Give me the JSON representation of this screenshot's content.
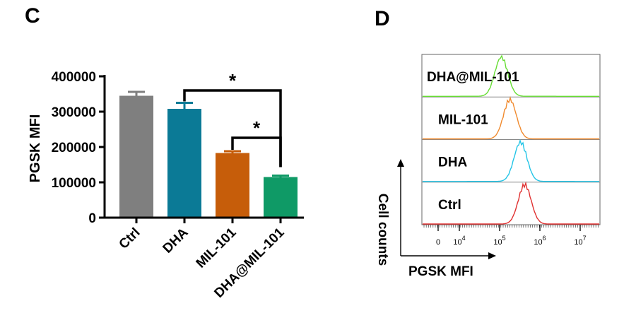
{
  "panels": {
    "c_label": "C",
    "d_label": "D"
  },
  "chart_data": [
    {
      "type": "bar",
      "panel": "C",
      "categories": [
        "Ctrl",
        "DHA",
        "MIL-101",
        "DHA@MIL-101"
      ],
      "values": [
        345000,
        308000,
        183000,
        115000
      ],
      "errors": [
        11000,
        17000,
        5000,
        4000
      ],
      "colors": [
        "#7f7f7f",
        "#0b7a96",
        "#c65d0a",
        "#0f9a66"
      ],
      "ylabel": "PGSK MFI",
      "ylim": [
        0,
        400000
      ],
      "yticks": [
        0,
        100000,
        200000,
        300000,
        400000
      ],
      "yticklabels": [
        "0",
        "100000",
        "200000",
        "300000",
        "400000"
      ],
      "significance": [
        {
          "from": "DHA",
          "to": "DHA@MIL-101",
          "label": "*"
        },
        {
          "from": "MIL-101",
          "to": "DHA@MIL-101",
          "label": "*"
        }
      ],
      "grid": false
    },
    {
      "type": "line",
      "panel": "D",
      "xlabel": "PGSK MFI",
      "ylabel": "Cell counts",
      "xscale": "log",
      "xticks": [
        0,
        10000,
        100000,
        1000000,
        10000000
      ],
      "xticklabels": [
        "0",
        "10^4",
        "10^5",
        "10^6",
        "10^7"
      ],
      "series": [
        {
          "name": "DHA@MIL-101",
          "color": "#66dd33",
          "peak": 110000,
          "x": [
            0,
            10000,
            30000,
            60000,
            80000,
            110000,
            140000,
            200000,
            300000,
            1000000,
            10000000
          ],
          "y": [
            0,
            0,
            0.03,
            0.25,
            0.62,
            1.0,
            0.7,
            0.22,
            0.04,
            0,
            0
          ]
        },
        {
          "name": "MIL-101",
          "color": "#f08a2e",
          "peak": 180000,
          "x": [
            0,
            10000,
            60000,
            100000,
            140000,
            180000,
            230000,
            300000,
            500000,
            1000000,
            10000000
          ],
          "y": [
            0,
            0,
            0.03,
            0.3,
            0.75,
            1.0,
            0.72,
            0.32,
            0.05,
            0,
            0
          ]
        },
        {
          "name": "DHA",
          "color": "#22c4e6",
          "peak": 330000,
          "x": [
            0,
            10000,
            100000,
            170000,
            250000,
            330000,
            420000,
            550000,
            800000,
            2000000,
            10000000
          ],
          "y": [
            0,
            0,
            0.03,
            0.28,
            0.7,
            1.0,
            0.75,
            0.35,
            0.05,
            0,
            0
          ]
        },
        {
          "name": "Ctrl",
          "color": "#e03030",
          "peak": 420000,
          "x": [
            0,
            10000,
            150000,
            250000,
            340000,
            420000,
            520000,
            650000,
            900000,
            2000000,
            10000000
          ],
          "y": [
            0,
            0,
            0.03,
            0.3,
            0.8,
            1.0,
            0.8,
            0.4,
            0.05,
            0,
            0
          ]
        }
      ]
    }
  ]
}
